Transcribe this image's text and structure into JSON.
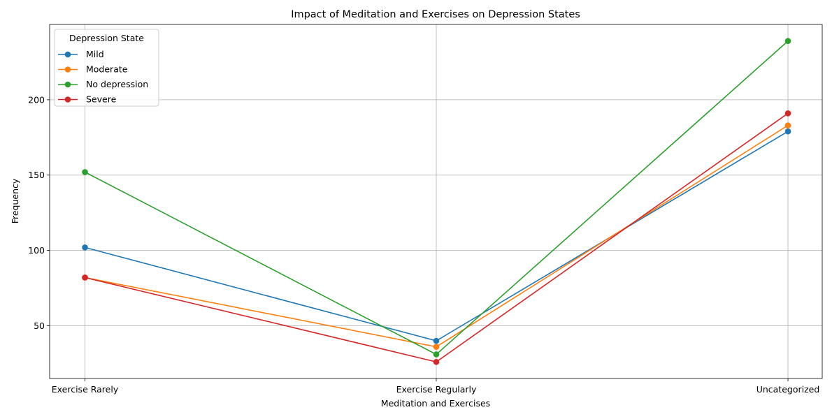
{
  "chart_data": {
    "type": "line",
    "title": "Impact of Meditation and Exercises on Depression States",
    "xlabel": "Meditation and Exercises",
    "ylabel": "Frequency",
    "categories": [
      "Exercise Rarely",
      "Exercise Regularly",
      "Uncategorized"
    ],
    "yticks": [
      50,
      100,
      150,
      200
    ],
    "ylim": [
      15,
      250
    ],
    "grid": true,
    "legend": {
      "title": "Depression State",
      "position": "top-left"
    },
    "series": [
      {
        "name": "Mild",
        "color": "#1f77b4",
        "values": [
          102,
          40,
          179
        ]
      },
      {
        "name": "Moderate",
        "color": "#ff7f0e",
        "values": [
          82,
          36,
          183
        ]
      },
      {
        "name": "No depression",
        "color": "#2ca02c",
        "values": [
          152,
          31,
          239
        ]
      },
      {
        "name": "Severe",
        "color": "#d62728",
        "values": [
          82,
          26,
          191
        ]
      }
    ]
  }
}
